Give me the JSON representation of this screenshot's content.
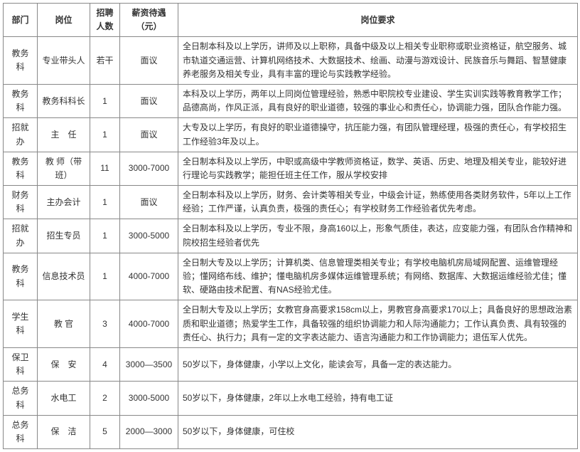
{
  "headers": {
    "dept": "部门",
    "position": "岗位",
    "count": "招聘人数",
    "salary": "薪资待遇（元）",
    "requirements": "岗位要求"
  },
  "rows": [
    {
      "dept": "教务科",
      "position": "专业带头人",
      "count": "若干",
      "salary": "面议",
      "requirements": "全日制本科及以上学历，讲师及以上职称，具备中级及以上相关专业职称或职业资格证，航空服务、城市轨道交通运营、计算机网络技术、大数据技术、绘画、动漫与游戏设计、民族音乐与舞蹈、智慧健康养老服务及相关专业，具有丰富的理论与实践教学经验。"
    },
    {
      "dept": "教务科",
      "position": "教务科科长",
      "count": "1",
      "salary": "面议",
      "requirements": "本科及以上学历，两年以上同岗位管理经验，熟悉中职院校专业建设、学生实训实践等教育教学工作；品德高尚，作风正派，具有良好的职业道德，较强的事业心和责任心，协调能力强，团队合作能力强。"
    },
    {
      "dept": "招就办",
      "position": "主　任",
      "count": "1",
      "salary": "面议",
      "requirements": "大专及以上学历，有良好的职业道德操守，抗压能力强，有团队管理经理，极强的责任心，有学校招生工作经验3年及以上。"
    },
    {
      "dept": "教务科",
      "position": "教 师（带班）",
      "count": "11",
      "salary": "3000-7000",
      "requirements": "全日制本科及以上学历，中职或高级中学教师资格证，数学、英语、历史、地理及相关专业，能较好进行理论与实践教学；能担任班主任工作，服从学校安排"
    },
    {
      "dept": "财务科",
      "position": "主办会计",
      "count": "1",
      "salary": "面议",
      "requirements": "全日制本科及以上学历，财务、会计类等相关专业，中级会计证，熟练使用各类财务软件，5年以上工作经验；工作严谨，认真负责，极强的责任心；有学校财务工作经验者优先考虑。"
    },
    {
      "dept": "招就办",
      "position": "招生专员",
      "count": "1",
      "salary": "3000-5000",
      "requirements": "全日制本科及以上学历，专业不限，身高160以上，形象气质佳，表达，应变能力强，有团队合作精神和院校招生经验者优先"
    },
    {
      "dept": "教务科",
      "position": "信息技术员",
      "count": "1",
      "salary": "4000-7000",
      "requirements": "全日制大专及以上学历；计算机类、信息管理类相关专业；有学校电脑机房局域网配置、运维管理经验；懂网络布线、维护；懂电脑机房多媒体运维管理系统；有网络、数据库、大数据运维经验尤佳；懂软、硬路由技术配置、有NAS经验尤佳。"
    },
    {
      "dept": "学生科",
      "position": "教 官",
      "count": "3",
      "salary": "4000-7000",
      "requirements": "全日制大专及以上学历；女教官身高要求158cm以上，男教官身高要求170以上；具备良好的思想政治素质和职业道德；热爱学生工作，具备较强的组织协调能力和人际沟通能力；工作认真负责、具有较强的责任心、执行力；具有一定的文字表达能力、语言沟通能力和工作协调能力；退伍军人优先。"
    },
    {
      "dept": "保卫科",
      "position": "保　安",
      "count": "4",
      "salary": "3000—3500",
      "requirements": "50岁以下，身体健康，小学以上文化，能读会写，具备一定的表达能力。"
    },
    {
      "dept": "总务科",
      "position": "水电工",
      "count": "2",
      "salary": "3000-5000",
      "requirements": "50岁以下，身体健康，2年以上水电工经验，持有电工证"
    },
    {
      "dept": "总务科",
      "position": "保　洁",
      "count": "5",
      "salary": "2000—3000",
      "requirements": "50岁以下，身体健康，可住校"
    }
  ]
}
